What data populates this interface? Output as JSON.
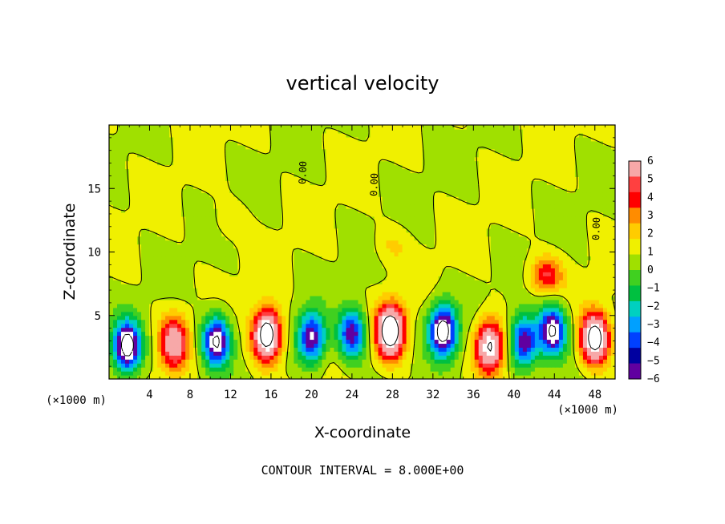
{
  "chart_data": {
    "type": "heatmap",
    "title": "vertical velocity",
    "xlabel": "X-coordinate",
    "ylabel": "Z-coordinate",
    "x_unit_left": "(×1000 m)",
    "x_unit_right": "(×1000 m)",
    "xlim": [
      0,
      50
    ],
    "ylim": [
      0,
      20
    ],
    "x_ticks": [
      4,
      8,
      12,
      16,
      20,
      24,
      28,
      32,
      36,
      40,
      44,
      48
    ],
    "y_ticks": [
      5,
      10,
      15
    ],
    "colorbar_ticks": [
      6,
      5,
      4,
      3,
      2,
      1,
      0,
      -1,
      -2,
      -3,
      -4,
      -5,
      -6
    ],
    "colorbar_colors": [
      "#f7a8a8",
      "#ff4040",
      "#ff0000",
      "#ff8c00",
      "#ffcc00",
      "#f0f000",
      "#a0e000",
      "#40d020",
      "#00c040",
      "#00d0c0",
      "#00a0ff",
      "#0040ff",
      "#0000a0",
      "#6000a0"
    ],
    "contour_interval_text": "CONTOUR INTERVAL = 8.000E+00",
    "contour_label": "0.00",
    "contour_levels": [
      -8,
      0,
      8
    ],
    "grid": false,
    "blobs": [
      {
        "x": 1.8,
        "z": 2.6,
        "w": -9.5
      },
      {
        "x": 6.4,
        "z": 2.9,
        "w": 6.5
      },
      {
        "x": 10.6,
        "z": 3.0,
        "w": -8.5
      },
      {
        "x": 15.6,
        "z": 3.5,
        "w": 10.5
      },
      {
        "x": 20.0,
        "z": 3.3,
        "w": -7.5
      },
      {
        "x": 24.0,
        "z": 3.6,
        "w": -7.0
      },
      {
        "x": 27.8,
        "z": 3.8,
        "w": 11.0
      },
      {
        "x": 33.0,
        "z": 3.8,
        "w": -9.5
      },
      {
        "x": 37.6,
        "z": 2.6,
        "w": 8.5
      },
      {
        "x": 41.0,
        "z": 3.0,
        "w": -7.5
      },
      {
        "x": 43.8,
        "z": 3.8,
        "w": -8.5
      },
      {
        "x": 48.0,
        "z": 3.2,
        "w": 10.0
      },
      {
        "x": 43.2,
        "z": 8.2,
        "w": 4.2
      },
      {
        "x": 28.0,
        "z": 10.5,
        "w": 1.2
      },
      {
        "x": 12.0,
        "z": 12.5,
        "w": 0.9
      }
    ]
  }
}
